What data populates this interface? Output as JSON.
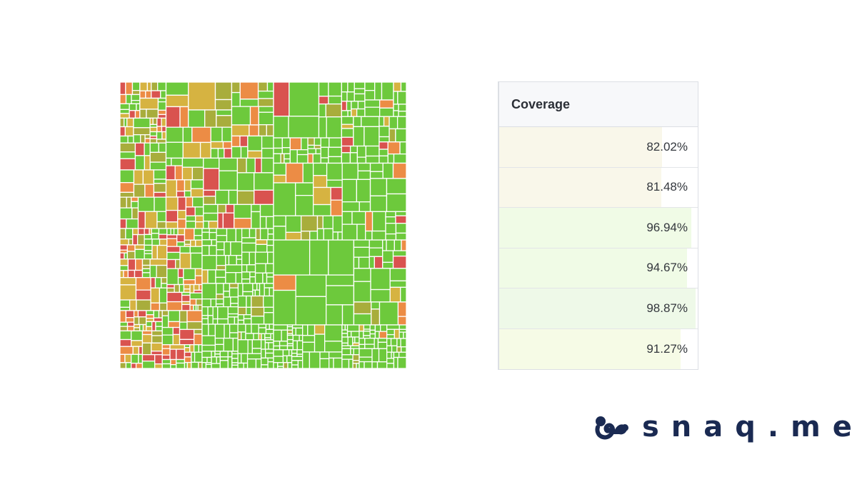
{
  "chart_data": {
    "type": "heatmap",
    "description_kind": "coverage treemap",
    "value_unit": "%",
    "color_scale": {
      "low": "#d9534f",
      "mid_low": "#ec8c45",
      "mid": "#d6b341",
      "mid_high": "#a8ad3c",
      "high": "#6dc93c"
    },
    "regions": [
      {
        "name": "",
        "coverage": 82.02
      },
      {
        "name": "",
        "coverage": 81.48
      },
      {
        "name": "",
        "coverage": 96.94
      },
      {
        "name": "",
        "coverage": 94.67
      },
      {
        "name": "",
        "coverage": 98.87
      },
      {
        "name": "",
        "coverage": 91.27
      }
    ]
  },
  "coverage_table": {
    "header": "Coverage",
    "rows": [
      {
        "value": 82.02,
        "label": "82.02%",
        "color": "#f9f7ea"
      },
      {
        "value": 81.48,
        "label": "81.48%",
        "color": "#f9f7ea"
      },
      {
        "value": 96.94,
        "label": "96.94%",
        "color": "#f0fbe6"
      },
      {
        "value": 94.67,
        "label": "94.67%",
        "color": "#f0fbe6"
      },
      {
        "value": 98.87,
        "label": "98.87%",
        "color": "#eef9e8"
      },
      {
        "value": 91.27,
        "label": "91.27%",
        "color": "#f6fbe6"
      }
    ]
  },
  "brand": {
    "name": "snaq.me",
    "logo_icon": "squirrel-icon",
    "color": "#1a2a52"
  }
}
